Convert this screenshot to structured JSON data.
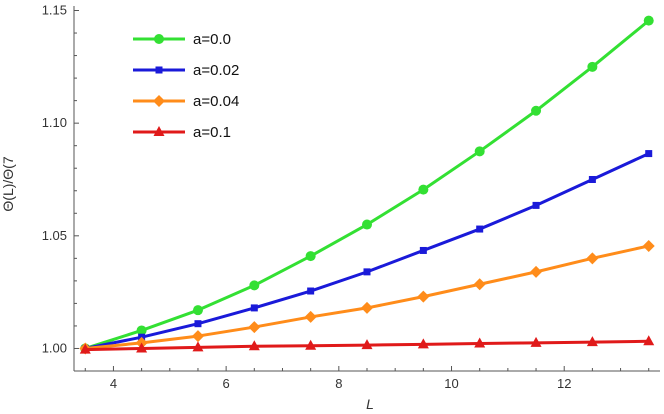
{
  "chart_data": {
    "type": "line",
    "title": "",
    "xlabel": "L",
    "ylabel": "Θ(L)/Θ(7",
    "xlim": [
      3.3,
      13.7
    ],
    "ylim": [
      0.99,
      1.152
    ],
    "xticks": [
      4,
      6,
      8,
      10,
      12
    ],
    "yticks": [
      1.0,
      1.05,
      1.1,
      1.15
    ],
    "ytick_labels": [
      "1.00",
      "1.05",
      "1.10",
      "1.15"
    ],
    "grid": false,
    "legend_position": "top-left",
    "x": [
      3.5,
      4.5,
      5.5,
      6.5,
      7.5,
      8.5,
      9.5,
      10.5,
      11.5,
      12.5,
      13.5
    ],
    "series": [
      {
        "name": "a=0.0",
        "color": "#33e033",
        "marker": "circle",
        "values": [
          1.0,
          1.008,
          1.017,
          1.028,
          1.041,
          1.055,
          1.0705,
          1.0875,
          1.1055,
          1.125,
          1.1455
        ]
      },
      {
        "name": "a=0.02",
        "color": "#1a1ad9",
        "marker": "square",
        "values": [
          1.0,
          1.005,
          1.011,
          1.018,
          1.0255,
          1.034,
          1.0435,
          1.053,
          1.0635,
          1.075,
          1.0865
        ]
      },
      {
        "name": "a=0.04",
        "color": "#ff8c1a",
        "marker": "diamond",
        "values": [
          1.0,
          1.0025,
          1.0055,
          1.0095,
          1.014,
          1.018,
          1.023,
          1.0285,
          1.034,
          1.04,
          1.0455
        ]
      },
      {
        "name": "a=0.1",
        "color": "#e01a1a",
        "marker": "triangle",
        "values": [
          0.9995,
          1.0,
          1.0005,
          1.001,
          1.0012,
          1.0015,
          1.0018,
          1.0022,
          1.0025,
          1.0028,
          1.0032
        ]
      }
    ]
  }
}
